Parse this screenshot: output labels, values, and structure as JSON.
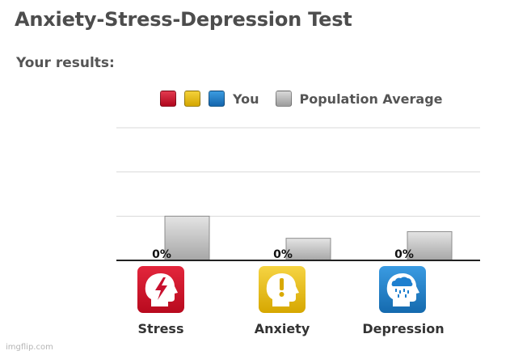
{
  "page": {
    "title": "Anxiety-Stress-Depression Test",
    "subtitle": "Your results:",
    "footer": "imgflip.com"
  },
  "legend": {
    "you_label": "You",
    "population_label": "Population Average",
    "you_colors": [
      "#c8102e",
      "#e6b800",
      "#1f7ac4"
    ],
    "population_color": "#b3b3b3"
  },
  "colors": {
    "stress": "#d01024",
    "anxiety": "#e8bd14",
    "depression": "#1d7fcf",
    "gridline": "#d9d9d9",
    "axis": "#222222"
  },
  "categories": [
    {
      "key": "stress",
      "label": "Stress",
      "icon": "stress-head-lightning-icon"
    },
    {
      "key": "anxiety",
      "label": "Anxiety",
      "icon": "anxiety-head-exclamation-icon"
    },
    {
      "key": "depression",
      "label": "Depression",
      "icon": "depression-head-raincloud-icon"
    }
  ],
  "chart_data": {
    "type": "bar",
    "title": "",
    "xlabel": "",
    "ylabel": "",
    "categories": [
      "Stress",
      "Anxiety",
      "Depression"
    ],
    "series": [
      {
        "name": "You",
        "values": [
          0,
          0,
          0
        ]
      },
      {
        "name": "Population Average",
        "values": [
          20,
          10,
          13
        ]
      }
    ],
    "value_labels": [
      "0%",
      "0%",
      "0%"
    ],
    "ylim": [
      0,
      60
    ],
    "grid": true,
    "legend_position": "top"
  }
}
